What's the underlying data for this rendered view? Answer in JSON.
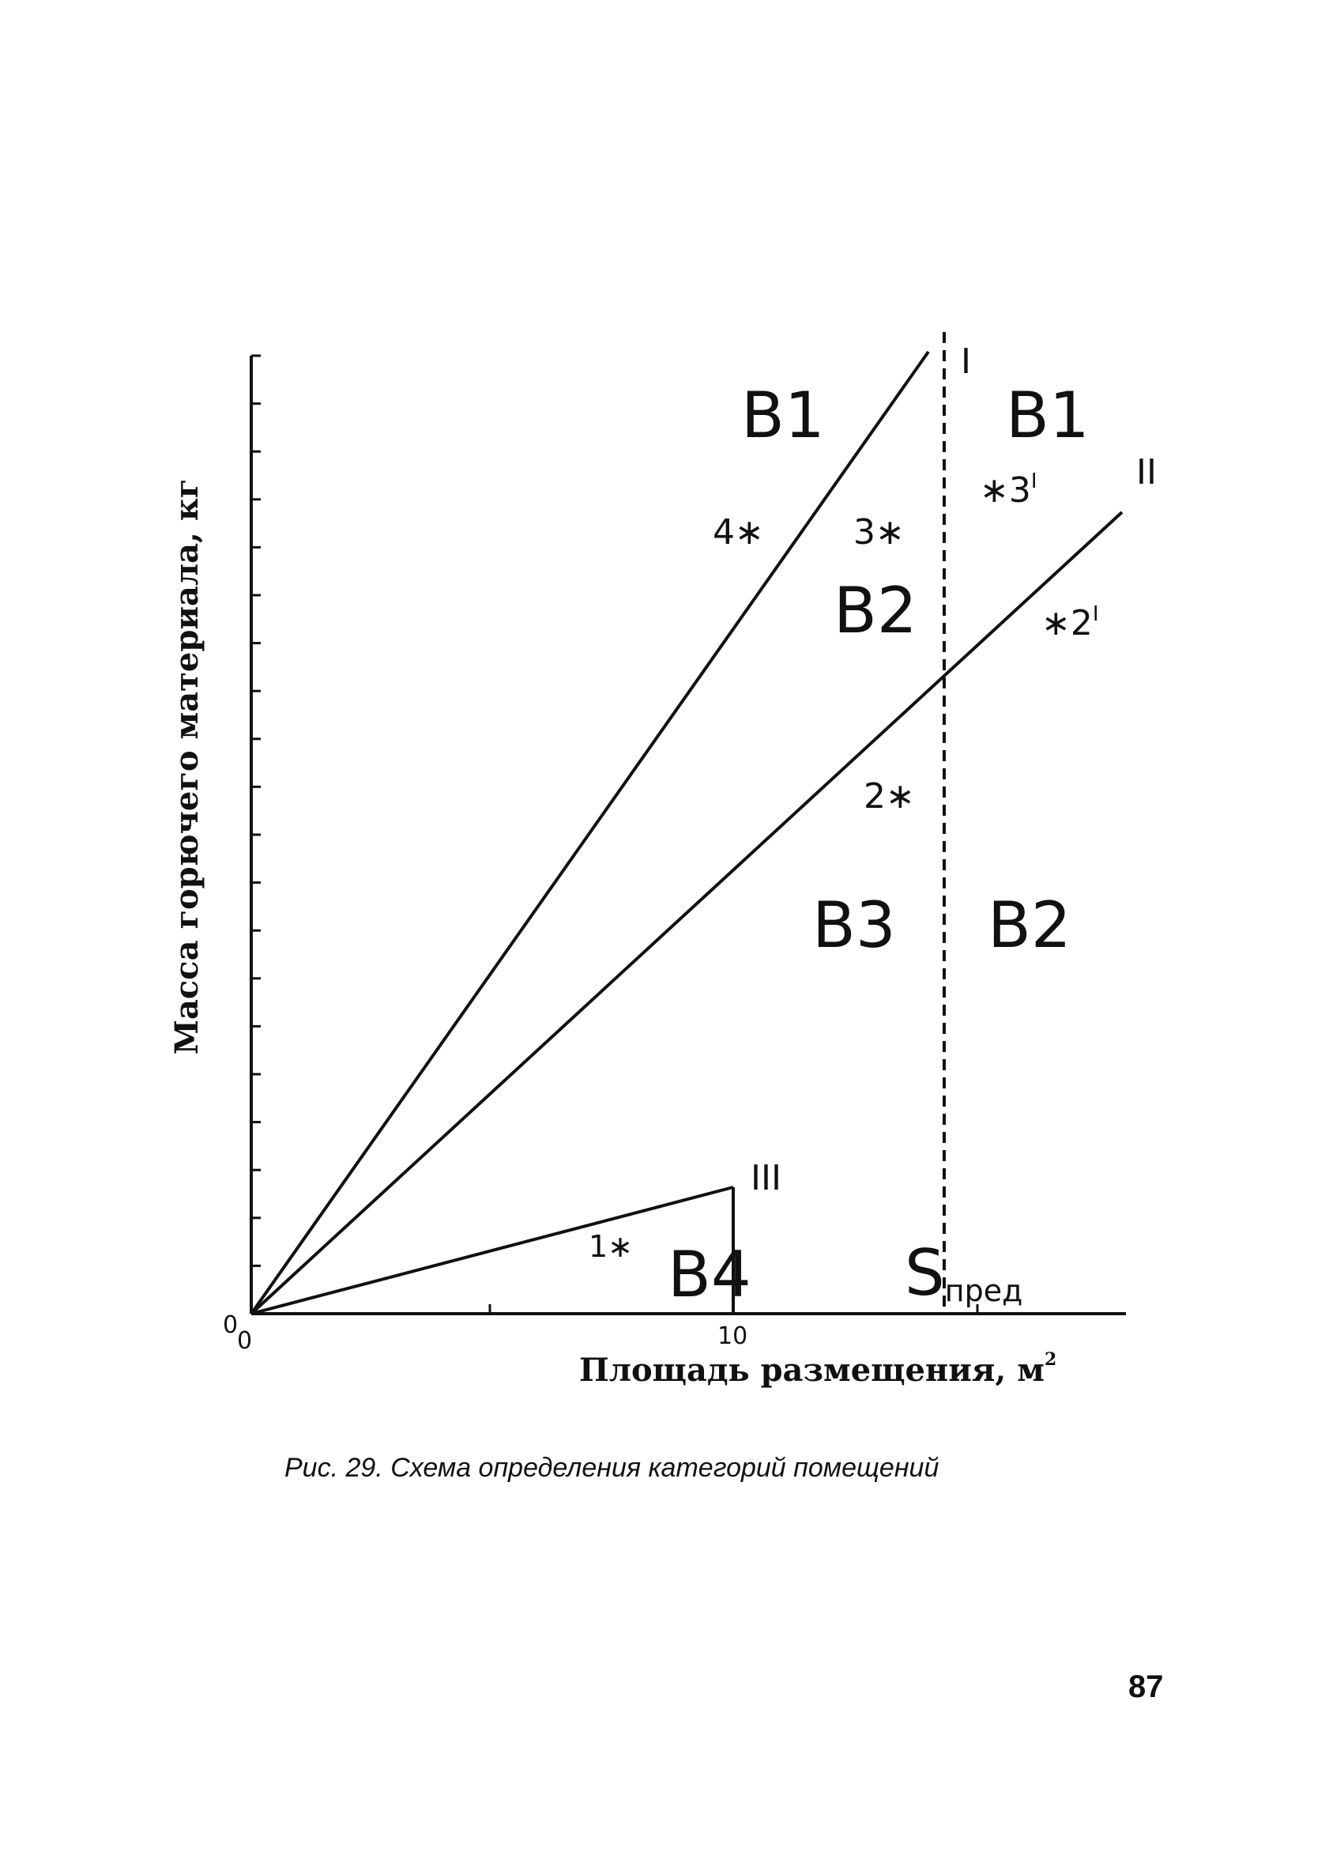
{
  "figure": {
    "y_axis_label": "Масса горючего материала, кг",
    "x_axis_label": "Площадь размещения, м",
    "x_axis_label_sup": "2",
    "origin_x_label": "0",
    "origin_y_label": "0",
    "x_tick_label_10": "10",
    "line_labels": {
      "I": "I",
      "II": "II",
      "III": "III"
    },
    "s_limit": {
      "main": "S",
      "sub": "пред"
    },
    "regions": {
      "top_left": "В1",
      "top_right": "В1",
      "middle_left": "В2",
      "lower_left": "В3",
      "lower_right": "В2",
      "triangle": "В4"
    },
    "points": {
      "p1": "1∗",
      "p2": "2∗",
      "p3": "3∗",
      "p4": "4∗",
      "p2prime_star": "∗2",
      "p2prime_mark": "I",
      "p3prime_star": "∗3",
      "p3prime_mark": "I"
    }
  },
  "caption": "Рис. 29. Схема определения категорий помещений",
  "page_number": "87"
}
